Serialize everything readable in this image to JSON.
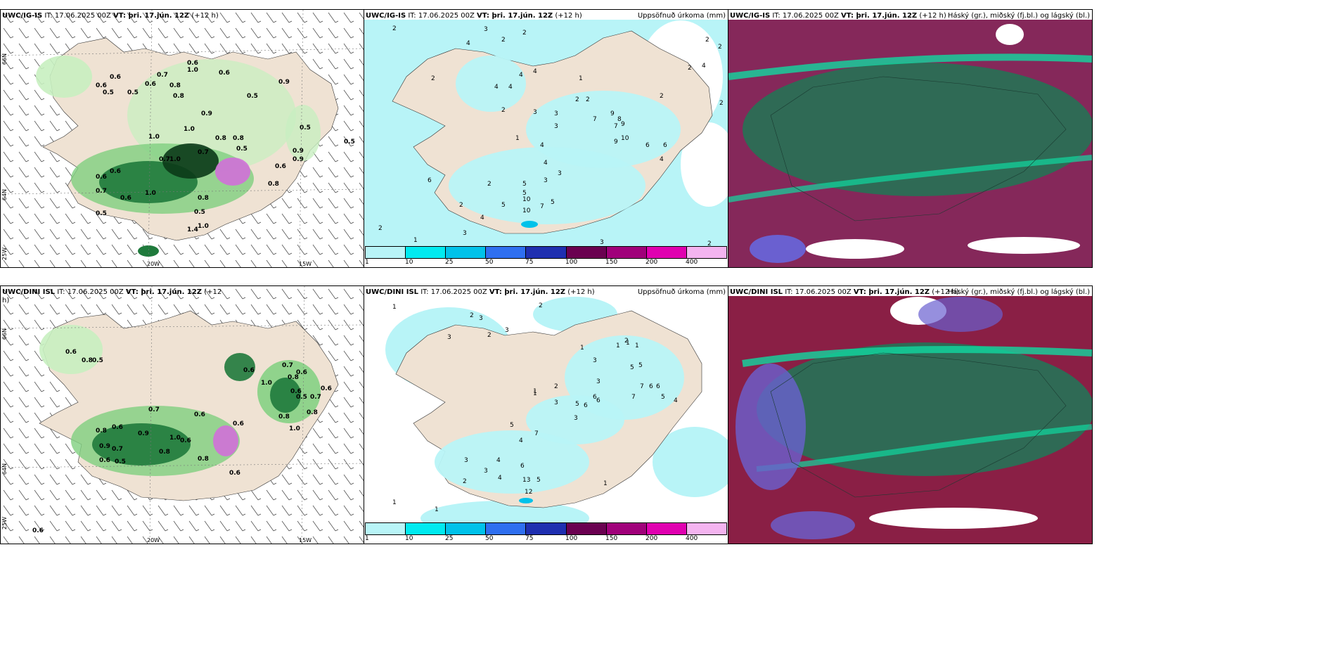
{
  "panels": {
    "top_left": {
      "model": "UWC/IG-IS",
      "it": " IT: 17.06.2025 00Z ",
      "vt_label": "VT:",
      "vt": " þri. 17.jún. 12Z",
      "lead": " (+12 h)"
    },
    "top_mid": {
      "model": "UWC/IG-IS",
      "it": " IT: 17.06.2025 00Z ",
      "vt_label": "VT:",
      "vt": " þri. 17.jún. 12Z",
      "lead": " (+12 h)",
      "right": "Uppsöfnuð úrkoma (mm)"
    },
    "top_right": {
      "model": "UWC/IG-IS",
      "it": " IT: 17.06.2025 00Z ",
      "vt_label": "VT:",
      "vt": " þri. 17.jún. 12Z",
      "lead": " (+12 h)",
      "right": "Háský (gr.), miðský (fj.bl.) og lágský (bl.)"
    },
    "bot_left": {
      "model": "UWC/DINI ISL",
      "it": " IT: 17.06.2025 00Z ",
      "vt_label": "VT:",
      "vt": " þri. 17.jún. 12Z",
      "lead": " (+12",
      "lead2": "h)"
    },
    "bot_mid": {
      "model": "UWC/DINI ISL",
      "it": " IT: 17.06.2025 00Z ",
      "vt_label": "VT:",
      "vt": " þri. 17.jún. 12Z",
      "lead": " (+12 h)",
      "right": "Uppsöfnuð úrkoma (mm)"
    },
    "bot_right": {
      "model": "UWC/DINI ISL",
      "it": " IT: 17.06.2025 00Z ",
      "vt_label": "VT:",
      "vt": " þri. 17.jún. 12Z",
      "lead": " (+12 h)",
      "right": "Háský (gr.), miðský (fj.bl.) og lágský (bl.)"
    }
  },
  "grid_labels": {
    "lon_20": "20W",
    "lon_15": "15W",
    "lat_66": "66N",
    "lat_64": "64N",
    "lat_25w": "25W"
  },
  "legend": {
    "ticks": [
      "1",
      "10",
      "25",
      "50",
      "75",
      "100",
      "150",
      "200",
      "400"
    ],
    "colors": [
      "#b8f4f7",
      "#00eaf0",
      "#00c2ea",
      "#2f6ff0",
      "#1f2fb0",
      "#6a0050",
      "#a0007a",
      "#e000b0",
      "#f4b4f0"
    ]
  },
  "colors": {
    "land": "#efe2d3",
    "green_light": "#c8efc0",
    "green_mid": "#7fd07f",
    "green_dark": "#1f7a3c",
    "green_darkest": "#0b3a18",
    "cyan_light": "#b8f4f7",
    "cloud_high": "#2f6a55",
    "cloud_mid": "#8a1f45",
    "cloud_low": "#6a60d0"
  },
  "rain_top_left": [
    "0.6",
    "0.6",
    "0.7",
    "0.5",
    "0.5",
    "0.6",
    "0.8",
    "0.6",
    "1.0",
    "0.5",
    "0.9",
    "0.6",
    "0.8",
    "1.0",
    "0.9",
    "0.8",
    "0.5",
    "0.7",
    "0.9",
    "1.0",
    "0.7",
    "0.6",
    "0.6",
    "0.7",
    "0.8",
    "1.0",
    "0.6",
    "0.5",
    "0.8",
    "0.5",
    "1.0",
    "0.6",
    "0.9",
    "0.8",
    "0.5",
    "1.4",
    "1.0",
    "0.5"
  ],
  "rain_bot_left": [
    "0.6",
    "0.8",
    "0.5",
    "1.0",
    "0.7",
    "0.6",
    "0.6",
    "0.8",
    "0.6",
    "0.7",
    "0.6",
    "0.8",
    "0.5",
    "0.7",
    "0.6",
    "1.0",
    "0.6",
    "0.8",
    "0.8",
    "0.6",
    "0.9",
    "1.0",
    "0.7",
    "0.5",
    "0.6",
    "0.8",
    "0.6",
    "0.6",
    "0.9",
    "0.8",
    "0.6"
  ],
  "accum_top": [
    "2",
    "2",
    "3",
    "2",
    "4",
    "2",
    "4",
    "4",
    "4",
    "4",
    "2",
    "1",
    "2",
    "3",
    "3",
    "3",
    "2",
    "2",
    "7",
    "9",
    "8",
    "9",
    "10",
    "9",
    "6",
    "4",
    "4",
    "1",
    "5",
    "3",
    "4",
    "3",
    "2",
    "5",
    "4",
    "10",
    "10",
    "7",
    "5",
    "6",
    "3",
    "2",
    "1",
    "2",
    "3",
    "2",
    "2",
    "2",
    "2",
    "2",
    "4",
    "5",
    "6",
    "7"
  ],
  "accum_bot": [
    "1",
    "2",
    "2",
    "3",
    "2",
    "3",
    "3",
    "1",
    "1",
    "2",
    "1",
    "1",
    "1",
    "3",
    "3",
    "5",
    "5",
    "7",
    "6",
    "7",
    "6",
    "5",
    "4",
    "3",
    "2",
    "1",
    "3",
    "6",
    "6",
    "5",
    "4",
    "4",
    "3",
    "7",
    "6",
    "5",
    "4",
    "3",
    "2",
    "1",
    "13",
    "12",
    "1",
    "1",
    "6",
    "5"
  ]
}
